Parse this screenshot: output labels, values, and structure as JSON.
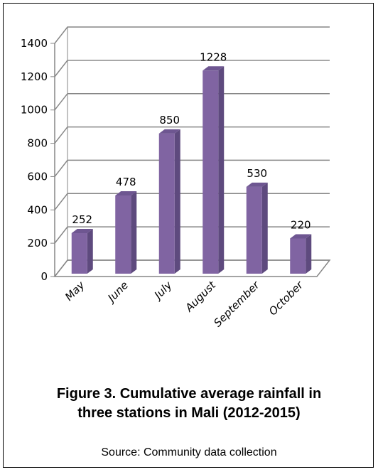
{
  "chart_data": {
    "type": "bar",
    "title": "",
    "xlabel": "",
    "ylabel": "",
    "categories": [
      "May",
      "June",
      "July",
      "August",
      "September",
      "October"
    ],
    "values": [
      252,
      478,
      850,
      1228,
      530,
      220
    ],
    "data_labels": [
      "252",
      "478",
      "850",
      "1228",
      "530",
      "220"
    ],
    "yticks": [
      0,
      200,
      400,
      600,
      800,
      1000,
      1200,
      1400
    ],
    "ylim": [
      0,
      1400
    ],
    "grid": true,
    "legend": "none",
    "style": "3d-column",
    "colors": {
      "bar_front": "#8064A2",
      "bar_side": "#5E4A7E",
      "bar_top": "#6E5691",
      "grid": "#868686"
    }
  },
  "caption": {
    "line1": "Figure 3. Cumulative average rainfall in",
    "line2": "three stations in Mali (2012-2015)"
  },
  "source": "Source: Community data collection"
}
